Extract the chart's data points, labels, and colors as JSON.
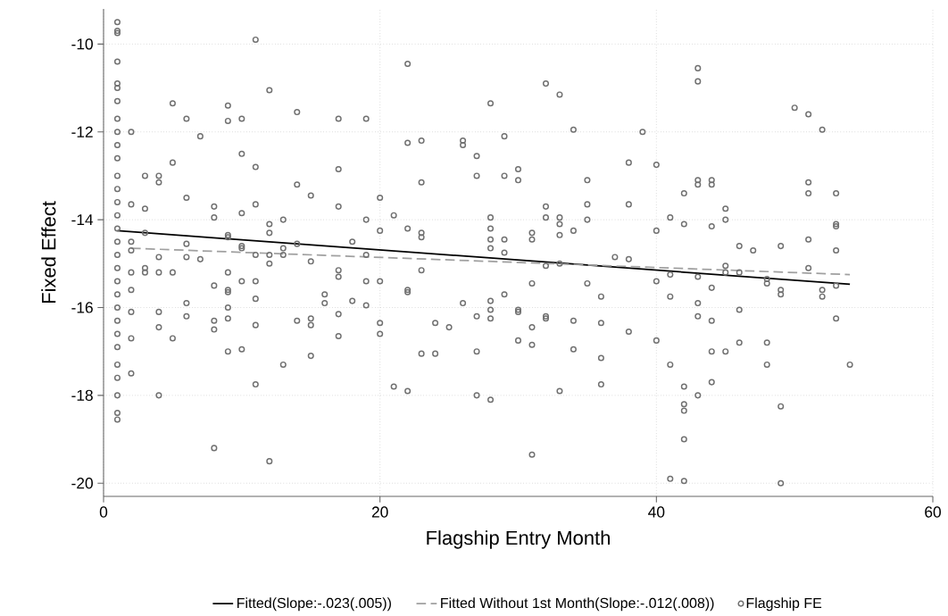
{
  "chart_data": {
    "type": "scatter",
    "xlabel": "Flagship Entry Month",
    "ylabel": "Fixed Effect",
    "xlim": [
      0,
      60
    ],
    "ylim": [
      -20.3,
      -9.2
    ],
    "xticks": [
      0,
      20,
      40,
      60
    ],
    "yticks": [
      -20,
      -18,
      -16,
      -14,
      -12,
      -10
    ],
    "grid": true,
    "legend": "bottom",
    "marker": "circle",
    "series": [
      {
        "name": "Fitted(Slope:-.023(.005))",
        "type": "line",
        "color": "#000000",
        "line_style": "solid",
        "marker": "none",
        "x": [
          1,
          54
        ],
        "values": [
          -14.25,
          -15.47
        ]
      },
      {
        "name": "Fitted Without 1st Month(Slope:-.012(.008))",
        "type": "line",
        "color": "#a0a0a0",
        "line_style": "dashed",
        "marker": "none",
        "x": [
          2,
          54
        ],
        "values": [
          -14.65,
          -15.25
        ]
      },
      {
        "name": "Flagship FE",
        "color": "#707070",
        "x": [
          1,
          1,
          1,
          1,
          1,
          1,
          1,
          1,
          1,
          1,
          1,
          1,
          1,
          1,
          1,
          1,
          1,
          1,
          1,
          1,
          1,
          1,
          1,
          1,
          1,
          1,
          1,
          1,
          1,
          1,
          2,
          2,
          2,
          2,
          2,
          2,
          2,
          2,
          2,
          3,
          3,
          3,
          3,
          3,
          4,
          4,
          4,
          4,
          4,
          4,
          4,
          5,
          5,
          5,
          5,
          6,
          6,
          6,
          6,
          6,
          6,
          7,
          7,
          8,
          8,
          8,
          8,
          8,
          8,
          9,
          9,
          9,
          9,
          9,
          9,
          9,
          9,
          9,
          9,
          10,
          10,
          10,
          10,
          10,
          10,
          10,
          11,
          11,
          11,
          11,
          11,
          11,
          11,
          11,
          12,
          12,
          12,
          12,
          12,
          12,
          13,
          13,
          13,
          13,
          14,
          14,
          14,
          14,
          15,
          15,
          15,
          15,
          15,
          16,
          16,
          17,
          17,
          17,
          17,
          17,
          17,
          17,
          18,
          18,
          19,
          19,
          19,
          19,
          19,
          20,
          20,
          20,
          20,
          20,
          21,
          21,
          22,
          22,
          22,
          22,
          22,
          22,
          23,
          23,
          23,
          23,
          23,
          23,
          24,
          24,
          25,
          26,
          26,
          26,
          27,
          27,
          27,
          27,
          27,
          28,
          28,
          28,
          28,
          28,
          28,
          28,
          28,
          28,
          29,
          29,
          29,
          29,
          29,
          30,
          30,
          30,
          30,
          30,
          31,
          31,
          31,
          31,
          31,
          31,
          32,
          32,
          32,
          32,
          32,
          32,
          33,
          33,
          33,
          33,
          33,
          33,
          34,
          34,
          34,
          34,
          35,
          35,
          35,
          35,
          36,
          36,
          36,
          36,
          37,
          38,
          38,
          38,
          38,
          39,
          40,
          40,
          40,
          40,
          41,
          41,
          41,
          41,
          41,
          42,
          42,
          42,
          42,
          42,
          42,
          42,
          43,
          43,
          43,
          43,
          43,
          43,
          43,
          43,
          44,
          44,
          44,
          44,
          44,
          44,
          44,
          45,
          45,
          45,
          45,
          45,
          46,
          46,
          46,
          46,
          47,
          48,
          48,
          48,
          48,
          49,
          49,
          49,
          49,
          49,
          50,
          51,
          51,
          51,
          51,
          51,
          52,
          52,
          52,
          53,
          53,
          53,
          53,
          53,
          53,
          54
        ],
        "values": [
          -9.5,
          -9.7,
          -9.75,
          -10.4,
          -10.9,
          -11.0,
          -11.3,
          -11.7,
          -12.0,
          -12.3,
          -12.6,
          -13.0,
          -13.3,
          -13.6,
          -13.9,
          -14.2,
          -14.5,
          -14.8,
          -15.1,
          -15.4,
          -15.7,
          -16.0,
          -16.3,
          -16.6,
          -16.9,
          -17.3,
          -17.6,
          -18.0,
          -18.4,
          -18.55,
          -12.0,
          -13.65,
          -14.5,
          -14.7,
          -15.2,
          -15.6,
          -16.1,
          -16.7,
          -17.5,
          -13.0,
          -13.75,
          -14.3,
          -15.2,
          -15.1,
          -13.0,
          -13.15,
          -14.85,
          -15.2,
          -16.1,
          -16.45,
          -18.0,
          -11.35,
          -12.7,
          -15.2,
          -16.7,
          -11.7,
          -13.5,
          -14.55,
          -14.85,
          -15.9,
          -16.2,
          -12.1,
          -14.9,
          -13.7,
          -13.95,
          -15.5,
          -16.3,
          -16.5,
          -19.2,
          -11.4,
          -11.75,
          -14.35,
          -14.4,
          -15.2,
          -15.6,
          -15.65,
          -16.0,
          -16.25,
          -17.0,
          -11.7,
          -12.5,
          -13.85,
          -14.6,
          -14.65,
          -15.4,
          -16.95,
          -9.9,
          -12.8,
          -13.65,
          -14.8,
          -15.4,
          -15.8,
          -16.4,
          -17.75,
          -11.05,
          -14.1,
          -14.3,
          -15.0,
          -14.8,
          -19.5,
          -14.0,
          -14.65,
          -14.8,
          -17.3,
          -11.55,
          -13.2,
          -14.55,
          -16.3,
          -13.45,
          -14.95,
          -16.25,
          -16.4,
          -17.1,
          -15.7,
          -15.9,
          -11.7,
          -12.85,
          -13.7,
          -15.15,
          -15.3,
          -16.15,
          -16.65,
          -14.5,
          -15.85,
          -11.7,
          -14.0,
          -14.8,
          -15.4,
          -15.95,
          -13.5,
          -14.25,
          -15.4,
          -16.35,
          -16.6,
          -13.9,
          -17.8,
          -10.45,
          -12.25,
          -14.2,
          -15.6,
          -15.65,
          -17.9,
          -12.2,
          -13.15,
          -14.3,
          -14.4,
          -15.15,
          -17.05,
          -16.35,
          -17.05,
          -16.45,
          -12.2,
          -12.3,
          -15.9,
          -12.55,
          -13.0,
          -16.2,
          -17.0,
          -18.0,
          -11.35,
          -13.95,
          -14.2,
          -14.45,
          -14.65,
          -15.85,
          -16.05,
          -16.25,
          -18.1,
          -12.1,
          -13.0,
          -14.45,
          -14.75,
          -15.7,
          -12.85,
          -13.1,
          -16.05,
          -16.1,
          -16.75,
          -14.3,
          -14.45,
          -15.45,
          -16.45,
          -16.85,
          -19.35,
          -10.9,
          -13.7,
          -13.95,
          -15.05,
          -16.2,
          -16.25,
          -11.15,
          -13.95,
          -14.1,
          -14.35,
          -15.0,
          -17.9,
          -11.95,
          -14.25,
          -16.3,
          -16.95,
          -13.1,
          -13.65,
          -14.0,
          -15.45,
          -15.75,
          -16.35,
          -17.15,
          -17.75,
          -14.85,
          -12.7,
          -13.65,
          -14.9,
          -16.55,
          -12.0,
          -12.75,
          -14.25,
          -15.4,
          -16.75,
          -13.95,
          -15.25,
          -15.75,
          -17.3,
          -19.9,
          -13.4,
          -14.1,
          -17.8,
          -18.2,
          -18.35,
          -19.0,
          -19.95,
          -10.55,
          -10.85,
          -13.1,
          -13.2,
          -15.3,
          -15.9,
          -16.2,
          -18.0,
          -13.1,
          -13.2,
          -14.15,
          -15.55,
          -16.3,
          -17.0,
          -17.7,
          -13.75,
          -14.0,
          -15.05,
          -15.2,
          -17.0,
          -14.6,
          -15.2,
          -16.05,
          -16.8,
          -14.7,
          -15.35,
          -15.45,
          -16.8,
          -17.3,
          -14.6,
          -15.6,
          -15.7,
          -18.25,
          -20.0,
          -11.45,
          -11.6,
          -13.15,
          -13.4,
          -14.45,
          -15.1,
          -11.95,
          -15.6,
          -15.75,
          -13.4,
          -14.1,
          -14.15,
          -14.7,
          -15.5,
          -16.25,
          -17.3
        ]
      }
    ]
  }
}
